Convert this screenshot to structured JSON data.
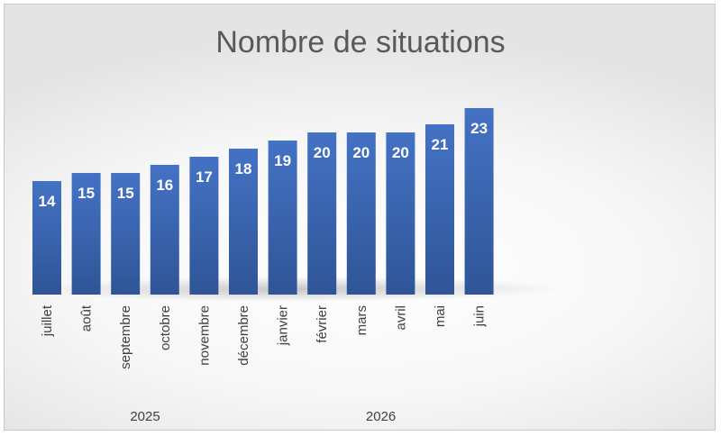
{
  "chart_data": {
    "type": "bar",
    "title": "Nombre de situations",
    "categories": [
      "juillet",
      "août",
      "septembre",
      "octobre",
      "novembre",
      "décembre",
      "janvier",
      "février",
      "mars",
      "avril",
      "mai",
      "juin"
    ],
    "groups": [
      {
        "label": "2025",
        "from": 0,
        "to": 5
      },
      {
        "label": "2026",
        "from": 6,
        "to": 11
      }
    ],
    "values": [
      14,
      15,
      15,
      16,
      17,
      18,
      19,
      20,
      20,
      20,
      21,
      23
    ],
    "ylim": [
      0,
      23
    ],
    "grid": false,
    "legend": "none",
    "bar_color": "#4472C4",
    "bar_color_dark": "#2F5597"
  }
}
